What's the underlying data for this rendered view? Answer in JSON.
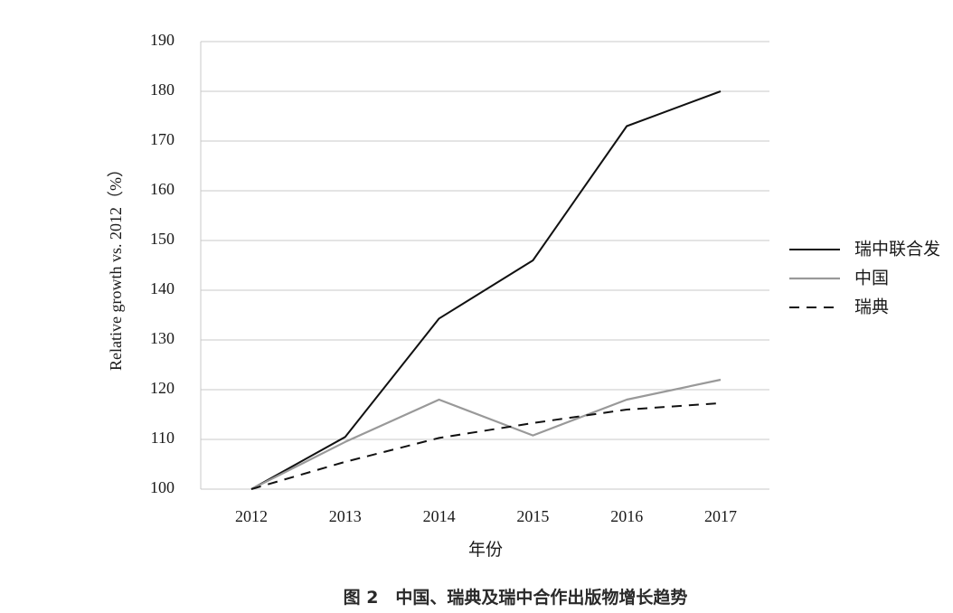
{
  "chart_data": {
    "type": "line",
    "title": "",
    "xlabel": "年份",
    "ylabel": "Relative growth vs. 2012（%）",
    "caption": "图 2　中国、瑞典及瑞中合作出版物增长趋势",
    "categories": [
      "2012",
      "2013",
      "2014",
      "2015",
      "2016",
      "2017"
    ],
    "ylim": [
      100,
      190
    ],
    "yticks": [
      100,
      110,
      120,
      130,
      140,
      150,
      160,
      170,
      180,
      190
    ],
    "grid": true,
    "legend_position": "right",
    "series": [
      {
        "name": "瑞中联合发",
        "values": [
          100,
          110.5,
          134.3,
          146,
          173,
          180
        ],
        "color": "#111111",
        "style": "solid"
      },
      {
        "name": "中国",
        "values": [
          100,
          109.5,
          118,
          110.8,
          118,
          122
        ],
        "color": "#999999",
        "style": "solid"
      },
      {
        "name": "瑞典",
        "values": [
          100,
          105.5,
          110.3,
          113.3,
          116,
          117.3
        ],
        "color": "#111111",
        "style": "dashed"
      }
    ]
  }
}
